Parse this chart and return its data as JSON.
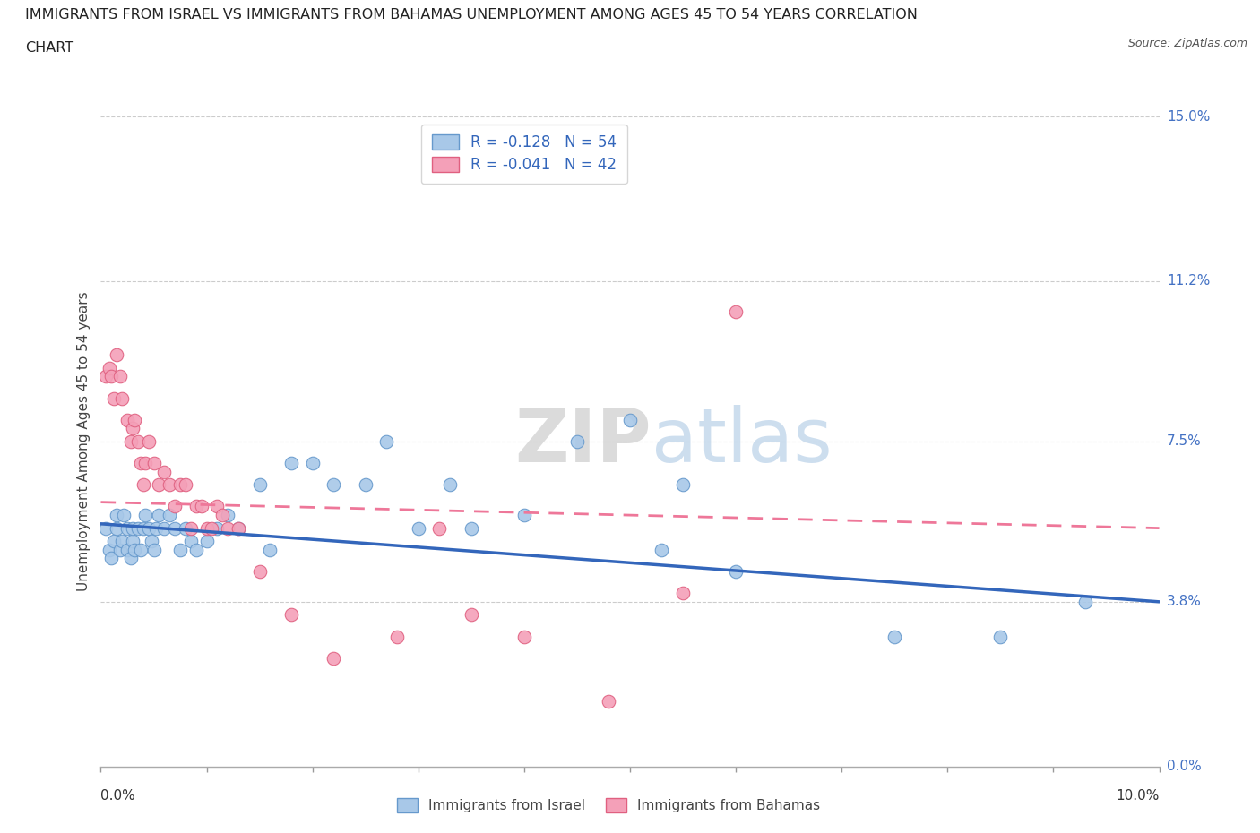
{
  "title_line1": "IMMIGRANTS FROM ISRAEL VS IMMIGRANTS FROM BAHAMAS UNEMPLOYMENT AMONG AGES 45 TO 54 YEARS CORRELATION",
  "title_line2": "CHART",
  "source": "Source: ZipAtlas.com",
  "ylabel": "Unemployment Among Ages 45 to 54 years",
  "ytick_labels": [
    "0.0%",
    "3.8%",
    "7.5%",
    "11.2%",
    "15.0%"
  ],
  "ytick_values": [
    0.0,
    3.8,
    7.5,
    11.2,
    15.0
  ],
  "xlim": [
    0.0,
    10.0
  ],
  "ylim": [
    0.0,
    15.0
  ],
  "legend1_text": "R = -0.128   N = 54",
  "legend2_text": "R = -0.041   N = 42",
  "israel_color": "#a8c8e8",
  "bahamas_color": "#f4a0b8",
  "israel_edge_color": "#6699cc",
  "bahamas_edge_color": "#e06080",
  "israel_line_color": "#3366bb",
  "bahamas_line_color": "#ee7799",
  "watermark": "ZIPatlas",
  "israel_x": [
    0.05,
    0.08,
    0.1,
    0.12,
    0.15,
    0.15,
    0.18,
    0.2,
    0.22,
    0.25,
    0.25,
    0.28,
    0.3,
    0.3,
    0.32,
    0.35,
    0.38,
    0.4,
    0.42,
    0.45,
    0.48,
    0.5,
    0.52,
    0.55,
    0.6,
    0.65,
    0.7,
    0.75,
    0.8,
    0.85,
    0.9,
    1.0,
    1.1,
    1.2,
    1.3,
    1.5,
    1.6,
    1.8,
    2.0,
    2.2,
    2.5,
    2.7,
    3.0,
    3.3,
    3.5,
    4.0,
    4.5,
    5.0,
    5.3,
    5.5,
    6.0,
    7.5,
    8.5,
    9.3
  ],
  "israel_y": [
    5.5,
    5.0,
    4.8,
    5.2,
    5.8,
    5.5,
    5.0,
    5.2,
    5.8,
    5.5,
    5.0,
    4.8,
    5.2,
    5.5,
    5.0,
    5.5,
    5.0,
    5.5,
    5.8,
    5.5,
    5.2,
    5.0,
    5.5,
    5.8,
    5.5,
    5.8,
    5.5,
    5.0,
    5.5,
    5.2,
    5.0,
    5.2,
    5.5,
    5.8,
    5.5,
    6.5,
    5.0,
    7.0,
    7.0,
    6.5,
    6.5,
    7.5,
    5.5,
    6.5,
    5.5,
    5.8,
    7.5,
    8.0,
    5.0,
    6.5,
    4.5,
    3.0,
    3.0,
    3.8
  ],
  "bahamas_x": [
    0.05,
    0.08,
    0.1,
    0.12,
    0.15,
    0.18,
    0.2,
    0.25,
    0.28,
    0.3,
    0.32,
    0.35,
    0.38,
    0.4,
    0.42,
    0.45,
    0.5,
    0.55,
    0.6,
    0.65,
    0.7,
    0.75,
    0.8,
    0.85,
    0.9,
    0.95,
    1.0,
    1.05,
    1.1,
    1.15,
    1.2,
    1.3,
    1.5,
    1.8,
    2.2,
    2.8,
    3.2,
    3.5,
    4.0,
    4.8,
    5.5,
    6.0
  ],
  "bahamas_y": [
    9.0,
    9.2,
    9.0,
    8.5,
    9.5,
    9.0,
    8.5,
    8.0,
    7.5,
    7.8,
    8.0,
    7.5,
    7.0,
    6.5,
    7.0,
    7.5,
    7.0,
    6.5,
    6.8,
    6.5,
    6.0,
    6.5,
    6.5,
    5.5,
    6.0,
    6.0,
    5.5,
    5.5,
    6.0,
    5.8,
    5.5,
    5.5,
    4.5,
    3.5,
    2.5,
    3.0,
    5.5,
    3.5,
    3.0,
    1.5,
    4.0,
    10.5
  ],
  "israel_line_x0": 0.0,
  "israel_line_y0": 5.6,
  "israel_line_x1": 10.0,
  "israel_line_y1": 3.8,
  "bahamas_line_x0": 0.0,
  "bahamas_line_y0": 6.1,
  "bahamas_line_x1": 10.0,
  "bahamas_line_y1": 5.5
}
